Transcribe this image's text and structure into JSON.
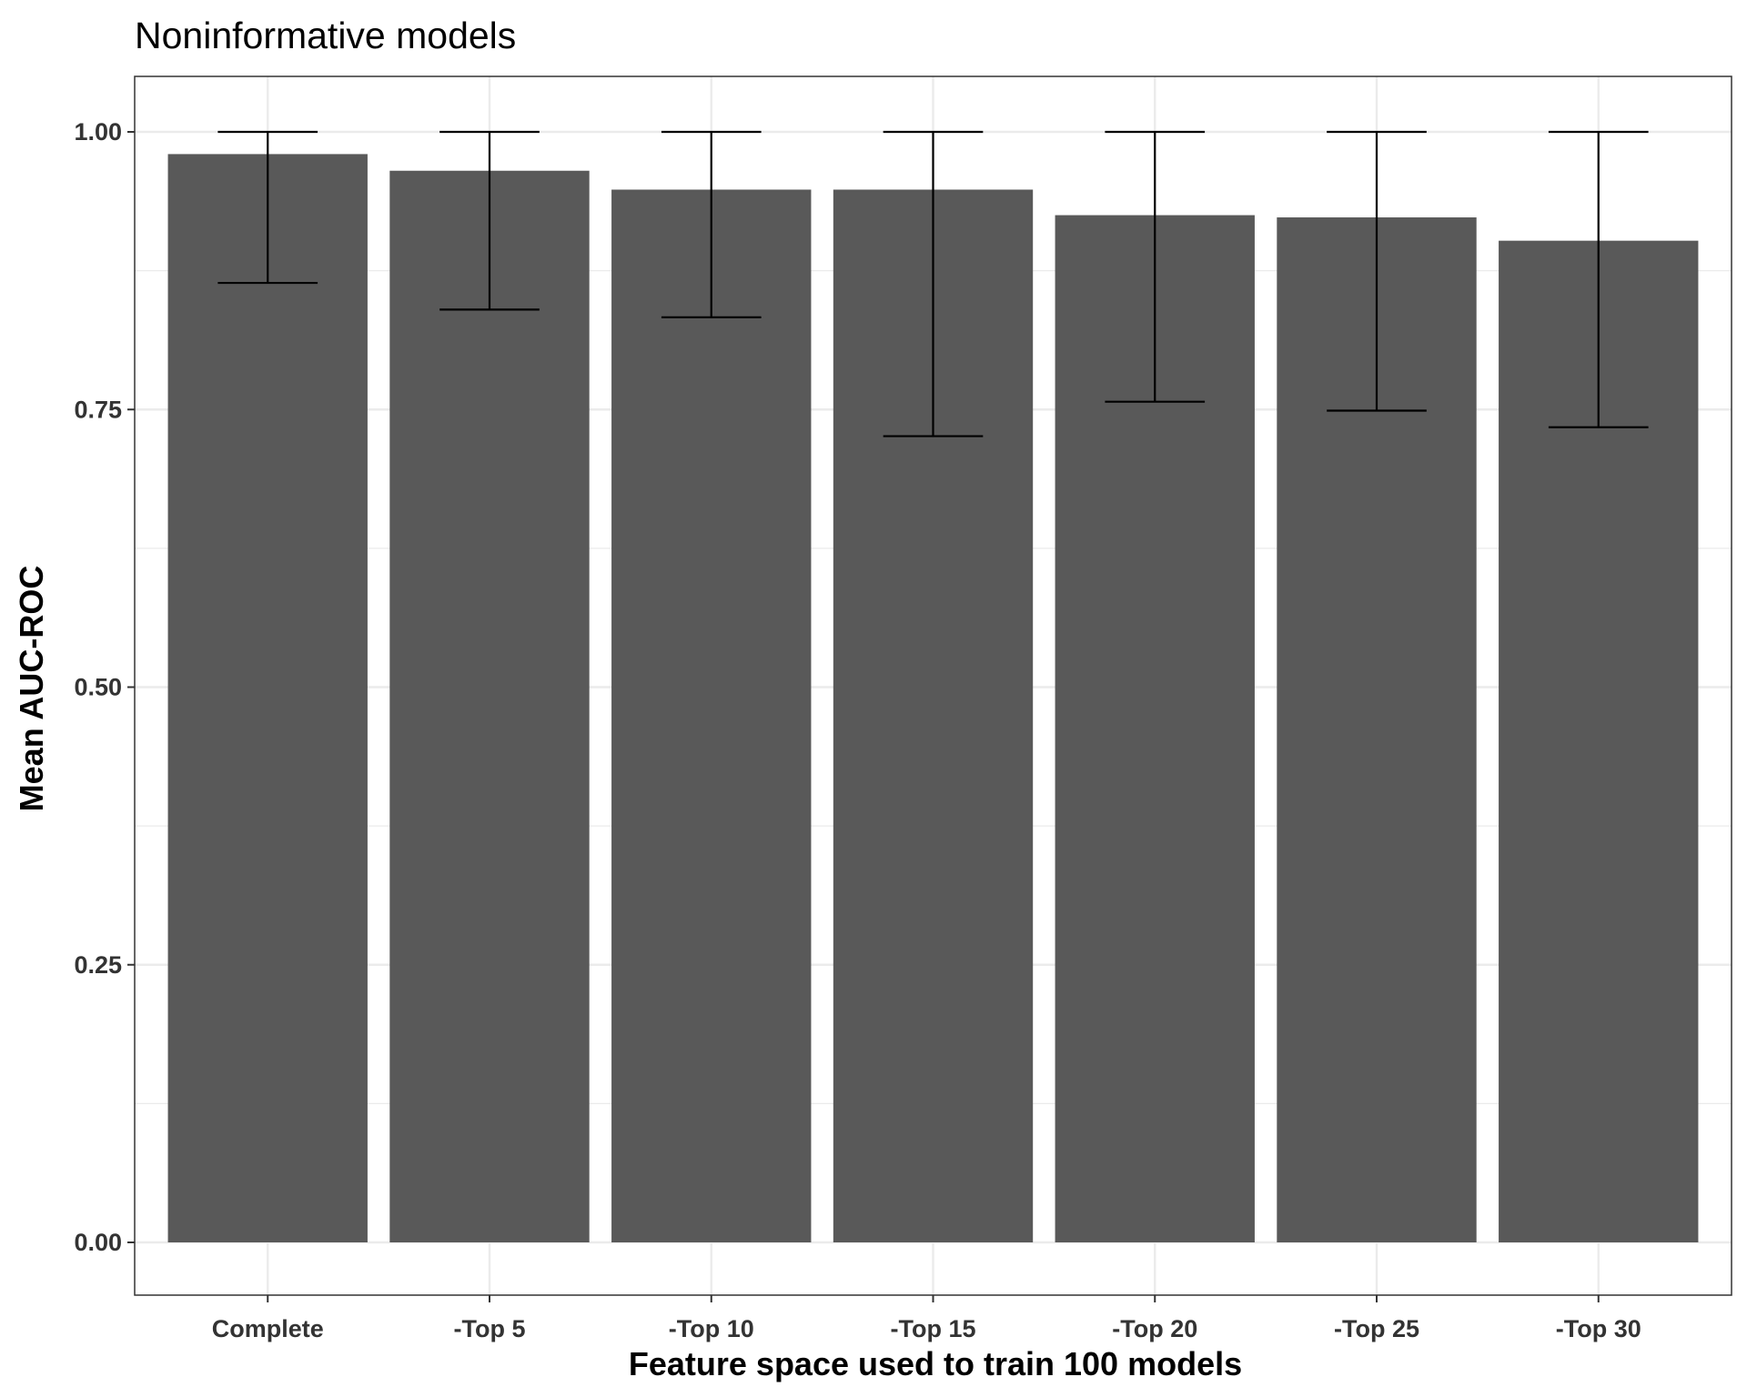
{
  "chart_data": {
    "type": "bar",
    "title": "Noninformative models",
    "xlabel": "Feature space used to train 100 models",
    "ylabel": "Mean AUC-ROC",
    "categories": [
      "Complete",
      "-Top 5",
      "-Top 10",
      "-Top 15",
      "-Top 20",
      "-Top 25",
      "-Top 30"
    ],
    "values": [
      0.98,
      0.965,
      0.948,
      0.948,
      0.925,
      0.923,
      0.902
    ],
    "error_lower": [
      0.864,
      0.84,
      0.833,
      0.726,
      0.757,
      0.749,
      0.734
    ],
    "error_upper": [
      1.0,
      1.0,
      1.0,
      1.0,
      1.0,
      1.0,
      1.0
    ],
    "yticks": [
      "0.00",
      "0.25",
      "0.50",
      "0.75",
      "1.00"
    ],
    "ylim": [
      -0.05,
      1.05
    ],
    "grid": true,
    "bar_color": "#595959",
    "error_bar_color": "#000000",
    "grid_color": "#ebebeb"
  }
}
